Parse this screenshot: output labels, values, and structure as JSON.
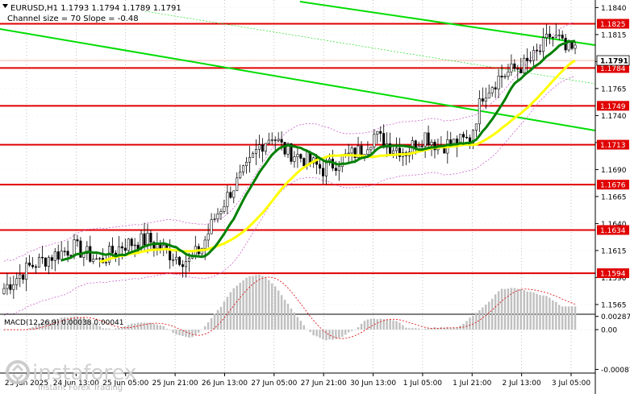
{
  "header": {
    "symbol_line": "EURUSD,H1  1.1793 1.1794 1.1789 1.1791",
    "channel_line": "Channel size = 70 Slope = -0.48"
  },
  "indicator": {
    "label": "MACD(12,26,9) 0.00038 0.00041"
  },
  "logo": {
    "brand": "instaforex",
    "tagline": "Instant Forex Trading"
  },
  "colors": {
    "background": "#ffffff",
    "candle": "#000000",
    "level_line": "#e00000",
    "level_label_bg": "#e00000",
    "current_price_label_bg": "#ffffff",
    "ma_slow": "#ffff00",
    "ma_fast": "#008000",
    "channel": "#00dd00",
    "envelope": "#cc66cc",
    "macd_hist": "#c0c0c0",
    "macd_signal": "#e00000",
    "grid": "#999999"
  },
  "chart_data": [
    {
      "type": "candlestick",
      "title": "EURUSD,H1",
      "ylim": [
        1.1556,
        1.1847
      ],
      "y_ticks": [
        "1.1840",
        "1.1815",
        "1.1790",
        "1.1765",
        "1.1740",
        "1.1715",
        "1.1690",
        "1.1665",
        "1.1640",
        "1.1615",
        "1.1590",
        "1.1565"
      ],
      "x_labels": [
        "23 Jun 2025",
        "24 Jun 13:00",
        "25 Jun 05:00",
        "25 Jun 21:00",
        "26 Jun 13:00",
        "27 Jun 05:00",
        "27 Jun 21:00",
        "30 Jun 13:00",
        "1 Jul 05:00",
        "1 Jul 21:00",
        "2 Jul 13:00",
        "3 Jul 05:00"
      ],
      "levels": [
        {
          "value": 1.1825,
          "label": "1.1825"
        },
        {
          "value": 1.1784,
          "label": "1.1784"
        },
        {
          "value": 1.1749,
          "label": "1.1749"
        },
        {
          "value": 1.1713,
          "label": "1.1713"
        },
        {
          "value": 1.1676,
          "label": "1.1676"
        },
        {
          "value": 1.1634,
          "label": "1.1634"
        },
        {
          "value": 1.1594,
          "label": "1.1594"
        }
      ],
      "current_price": {
        "value": 1.1791,
        "label": "1.1791"
      },
      "candles_count": 180,
      "path_anchors": [
        [
          0,
          1.158
        ],
        [
          8,
          1.16
        ],
        [
          15,
          1.161
        ],
        [
          22,
          1.1618
        ],
        [
          30,
          1.1605
        ],
        [
          37,
          1.162
        ],
        [
          45,
          1.1625
        ],
        [
          52,
          1.1612
        ],
        [
          58,
          1.1605
        ],
        [
          62,
          1.1618
        ],
        [
          66,
          1.1645
        ],
        [
          71,
          1.167
        ],
        [
          76,
          1.169
        ],
        [
          80,
          1.1712
        ],
        [
          84,
          1.1722
        ],
        [
          88,
          1.1708
        ],
        [
          94,
          1.17
        ],
        [
          100,
          1.169
        ],
        [
          106,
          1.17
        ],
        [
          112,
          1.1708
        ],
        [
          116,
          1.1722
        ],
        [
          121,
          1.1712
        ],
        [
          126,
          1.1707
        ],
        [
          132,
          1.1722
        ],
        [
          136,
          1.1712
        ],
        [
          142,
          1.1715
        ],
        [
          146,
          1.1718
        ],
        [
          150,
          1.176
        ],
        [
          155,
          1.1775
        ],
        [
          160,
          1.1783
        ],
        [
          164,
          1.1788
        ],
        [
          168,
          1.18
        ],
        [
          171,
          1.1814
        ],
        [
          174,
          1.181
        ],
        [
          176,
          1.18
        ]
      ],
      "series": [
        {
          "name": "MA slow",
          "color": "#ffff00"
        },
        {
          "name": "MA fast",
          "color": "#008000"
        }
      ]
    },
    {
      "type": "histogram",
      "title": "MACD(12,26,9) 0.00038 0.00041",
      "ylim": [
        -0.00095,
        0.00032
      ],
      "y_ticks": [
        "0.00287",
        "0.00",
        "-0.00087"
      ],
      "values_last": [
        0.00038,
        0.00041
      ]
    }
  ]
}
